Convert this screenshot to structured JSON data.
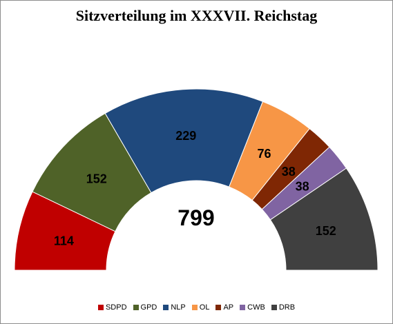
{
  "chart_data": {
    "type": "pie",
    "subtype": "half-donut",
    "title": "Sitzverteilung im XXXVII. Reichstag",
    "total_label": "799",
    "legend_position": "bottom",
    "slices": [
      {
        "name": "SDPD",
        "value": 114,
        "label": "114",
        "color": "#c00000"
      },
      {
        "name": "GPD",
        "value": 152,
        "label": "152",
        "color": "#4f6228"
      },
      {
        "name": "NLP",
        "value": 229,
        "label": "229",
        "color": "#1f497d"
      },
      {
        "name": "OL",
        "value": 76,
        "label": "76",
        "color": "#f79646"
      },
      {
        "name": "AP",
        "value": 38,
        "label": "38",
        "color": "#7f2704"
      },
      {
        "name": "CWB",
        "value": 38,
        "label": "38",
        "color": "#8064a2"
      },
      {
        "name": "DRB",
        "value": 152,
        "label": "152",
        "color": "#404040"
      }
    ]
  }
}
